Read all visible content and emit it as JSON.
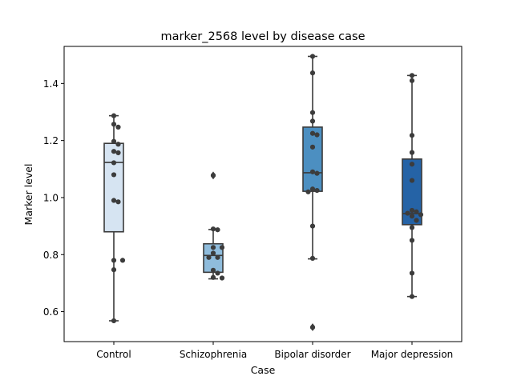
{
  "chart_data": {
    "type": "box",
    "title": "marker_2568 level by disease case",
    "xlabel": "Case",
    "ylabel": "Marker level",
    "ylim": [
      0.495,
      1.53
    ],
    "yticks": [
      0.6,
      0.8,
      1.0,
      1.2,
      1.4
    ],
    "ytick_labels": [
      "0.6",
      "0.8",
      "1.0",
      "1.2",
      "1.4"
    ],
    "grid": false,
    "categories": [
      "Control",
      "Schizophrenia",
      "Bipolar disorder",
      "Major depression"
    ],
    "colors": [
      "#d6e4f2",
      "#8fbcdc",
      "#4c8fc1",
      "#2563a6"
    ],
    "boxes": [
      {
        "q1": 0.88,
        "median": 1.123,
        "q3": 1.19,
        "whisker_low": 0.568,
        "whisker_high": 1.287,
        "outliers": []
      },
      {
        "q1": 0.738,
        "median": 0.797,
        "q3": 0.838,
        "whisker_low": 0.715,
        "whisker_high": 0.888,
        "outliers": [
          1.075,
          1.08
        ]
      },
      {
        "q1": 1.022,
        "median": 1.087,
        "q3": 1.247,
        "whisker_low": 0.785,
        "whisker_high": 1.495,
        "outliers": [
          0.543,
          0.548
        ]
      },
      {
        "q1": 0.905,
        "median": 0.944,
        "q3": 1.135,
        "whisker_low": 0.653,
        "whisker_high": 1.428,
        "outliers": []
      }
    ],
    "points": [
      [
        1.287,
        1.257,
        1.247,
        1.197,
        1.187,
        1.162,
        1.157,
        1.122,
        1.08,
        0.99,
        0.985,
        0.78,
        0.78,
        0.747,
        0.568
      ],
      [
        1.078,
        0.89,
        0.887,
        0.825,
        0.825,
        0.805,
        0.79,
        0.79,
        0.745,
        0.735,
        0.72,
        0.718
      ],
      [
        1.495,
        1.437,
        1.298,
        1.268,
        1.225,
        1.22,
        1.177,
        1.09,
        1.085,
        1.03,
        1.025,
        1.02,
        0.9,
        0.787,
        0.545
      ],
      [
        1.428,
        1.41,
        1.218,
        1.158,
        1.117,
        1.06,
        0.955,
        0.95,
        0.945,
        0.94,
        0.935,
        0.92,
        0.895,
        0.85,
        0.735,
        0.653
      ]
    ]
  }
}
